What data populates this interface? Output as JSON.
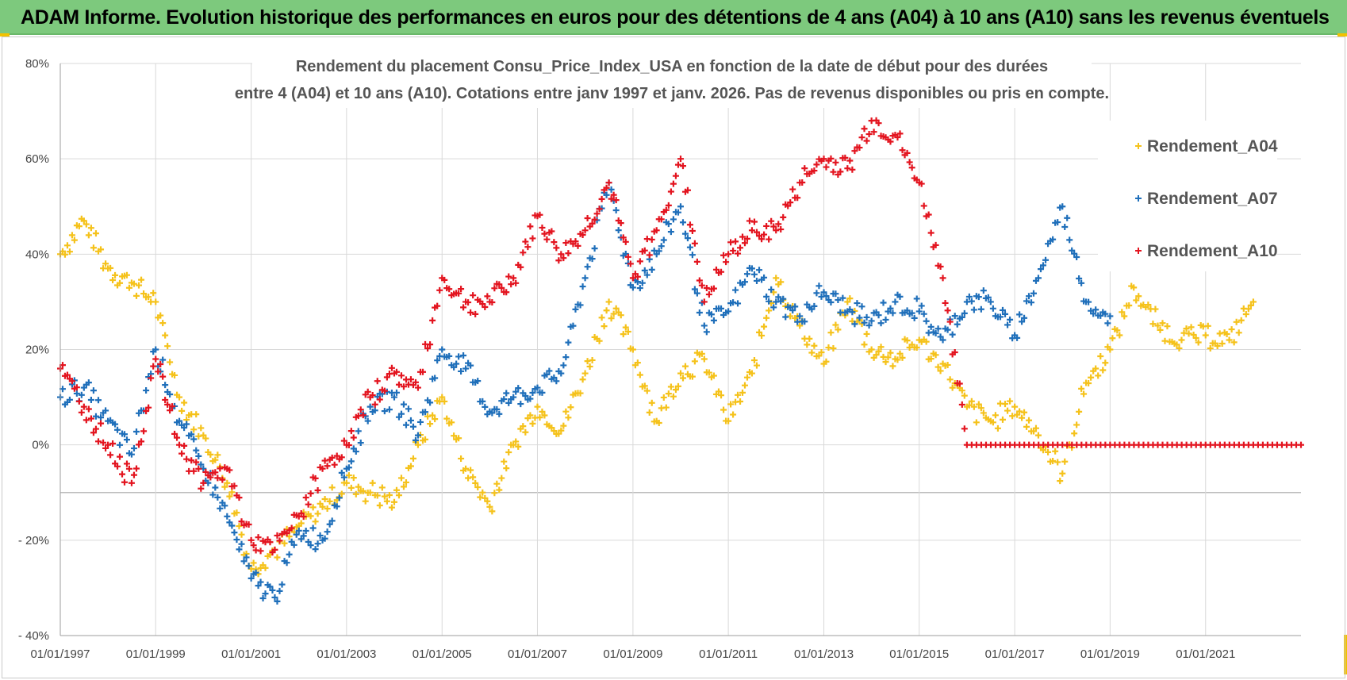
{
  "banner": {
    "title": "ADAM Informe. Evolution historique des performances en euros pour des détentions de 4 ans (A04) à 10 ans (A10) sans les revenus éventuels",
    "background": "#7dc97d"
  },
  "chart_data": {
    "type": "scatter",
    "title_line1": "Rendement du placement Consu_Price_Index_USA en fonction de la date de début pour des durées",
    "title_line2": "entre 4 (A04) et 10 ans (A10).  Cotations entre janv 1997 et janv. 2026. Pas de revenus disponibles ou pris en compte.",
    "xlabel": "",
    "ylabel": "",
    "x_range": [
      "1997-01-01",
      "2023-01-01"
    ],
    "ylim": [
      -40,
      80
    ],
    "y_ticks": [
      -40,
      -20,
      0,
      20,
      40,
      60,
      80
    ],
    "y_tick_labels": [
      "- 40%",
      "- 20%",
      "0%",
      "20%",
      "40%",
      "60%",
      "80%"
    ],
    "x_ticks": [
      "1997-01-01",
      "1999-01-01",
      "2001-01-01",
      "2003-01-01",
      "2005-01-01",
      "2007-01-01",
      "2009-01-01",
      "2011-01-01",
      "2013-01-01",
      "2015-01-01",
      "2017-01-01",
      "2019-01-01",
      "2021-01-01"
    ],
    "x_tick_labels": [
      "01/01/1997",
      "01/01/1999",
      "01/01/2001",
      "01/01/2003",
      "01/01/2005",
      "01/01/2007",
      "01/01/2009",
      "01/01/2011",
      "01/01/2013",
      "01/01/2015",
      "01/01/2017",
      "01/01/2019",
      "01/01/2021"
    ],
    "grid": true,
    "legend_position": "top-right",
    "marker": "+",
    "series": [
      {
        "name": "Rendement_A04",
        "color": "#f5c21b",
        "x": [
          "1997-01-01",
          "1997-07-01",
          "1998-01-01",
          "1998-07-01",
          "1999-01-01",
          "1999-07-01",
          "2000-01-01",
          "2000-07-01",
          "2001-01-01",
          "2001-07-01",
          "2002-01-01",
          "2002-07-01",
          "2003-01-01",
          "2003-07-01",
          "2004-01-01",
          "2004-07-01",
          "2005-01-01",
          "2005-07-01",
          "2006-01-01",
          "2006-07-01",
          "2007-01-01",
          "2007-07-01",
          "2008-01-01",
          "2008-07-01",
          "2009-01-01",
          "2009-07-01",
          "2010-01-01",
          "2010-07-01",
          "2011-01-01",
          "2011-07-01",
          "2012-01-01",
          "2012-07-01",
          "2013-01-01",
          "2013-07-01",
          "2014-01-01",
          "2014-07-01",
          "2015-01-01",
          "2015-07-01",
          "2016-01-01",
          "2016-07-01",
          "2017-01-01",
          "2017-07-01",
          "2018-01-01",
          "2018-07-01",
          "2019-01-01",
          "2019-07-01",
          "2020-01-01",
          "2020-07-01",
          "2021-01-01",
          "2021-07-01",
          "2022-01-01"
        ],
        "y": [
          40,
          47,
          37,
          34,
          30,
          10,
          2,
          -8,
          -26,
          -22,
          -17,
          -13,
          -8,
          -10,
          -12,
          0,
          10,
          -5,
          -13,
          0,
          8,
          3,
          15,
          30,
          20,
          5,
          15,
          18,
          5,
          15,
          35,
          25,
          17,
          30,
          20,
          18,
          22,
          17,
          8,
          5,
          8,
          2,
          -6,
          13,
          20,
          33,
          25,
          22,
          23,
          22,
          30
        ]
      },
      {
        "name": "Rendement_A07",
        "color": "#1f6fba",
        "x": [
          "1997-01-01",
          "1997-07-01",
          "1998-01-01",
          "1998-07-01",
          "1999-01-01",
          "1999-07-01",
          "2000-01-01",
          "2000-07-01",
          "2001-01-01",
          "2001-07-01",
          "2002-01-01",
          "2002-07-01",
          "2003-01-01",
          "2003-07-01",
          "2004-01-01",
          "2004-07-01",
          "2005-01-01",
          "2005-07-01",
          "2006-01-01",
          "2006-07-01",
          "2007-01-01",
          "2007-07-01",
          "2008-01-01",
          "2008-07-01",
          "2009-01-01",
          "2009-07-01",
          "2010-01-01",
          "2010-07-01",
          "2011-01-01",
          "2011-07-01",
          "2012-01-01",
          "2012-07-01",
          "2013-01-01",
          "2013-07-01",
          "2014-01-01",
          "2014-07-01",
          "2015-01-01",
          "2015-07-01",
          "2016-01-01",
          "2016-07-01",
          "2017-01-01",
          "2017-07-01",
          "2018-01-01",
          "2018-07-01",
          "2019-01-01"
        ],
        "y": [
          10,
          12,
          5,
          -2,
          20,
          5,
          -5,
          -15,
          -28,
          -32,
          -18,
          -20,
          -5,
          8,
          10,
          2,
          20,
          16,
          7,
          10,
          12,
          15,
          35,
          55,
          33,
          40,
          50,
          25,
          28,
          37,
          30,
          27,
          32,
          28,
          26,
          30,
          28,
          22,
          30,
          30,
          23,
          35,
          50,
          30,
          27
        ]
      },
      {
        "name": "Rendement_A10",
        "color": "#e3141f",
        "x": [
          "1997-01-01",
          "1997-07-01",
          "1998-01-01",
          "1998-07-01",
          "1999-01-01",
          "1999-07-01",
          "2000-01-01",
          "2000-07-01",
          "2001-01-01",
          "2001-07-01",
          "2002-01-01",
          "2002-07-01",
          "2003-01-01",
          "2003-07-01",
          "2004-01-01",
          "2004-07-01",
          "2005-01-01",
          "2005-07-01",
          "2006-01-01",
          "2006-07-01",
          "2007-01-01",
          "2007-07-01",
          "2008-01-01",
          "2008-07-01",
          "2009-01-01",
          "2009-07-01",
          "2010-01-01",
          "2010-07-01",
          "2011-01-01",
          "2011-07-01",
          "2012-01-01",
          "2012-07-01",
          "2013-01-01",
          "2013-07-01",
          "2014-01-01",
          "2014-07-01",
          "2015-01-01",
          "2015-07-01",
          "2016-01-01",
          "2017-01-01",
          "2018-01-01",
          "2019-01-01",
          "2020-01-01",
          "2021-01-01",
          "2022-01-01",
          "2023-01-01"
        ],
        "y": [
          16,
          8,
          0,
          -8,
          18,
          0,
          -8,
          -5,
          -20,
          -22,
          -15,
          -5,
          0,
          10,
          15,
          12,
          35,
          30,
          30,
          35,
          48,
          40,
          45,
          55,
          35,
          45,
          60,
          30,
          40,
          45,
          45,
          55,
          60,
          58,
          68,
          65,
          55,
          35,
          0,
          0,
          0,
          0,
          0,
          0,
          0,
          0
        ]
      }
    ]
  }
}
